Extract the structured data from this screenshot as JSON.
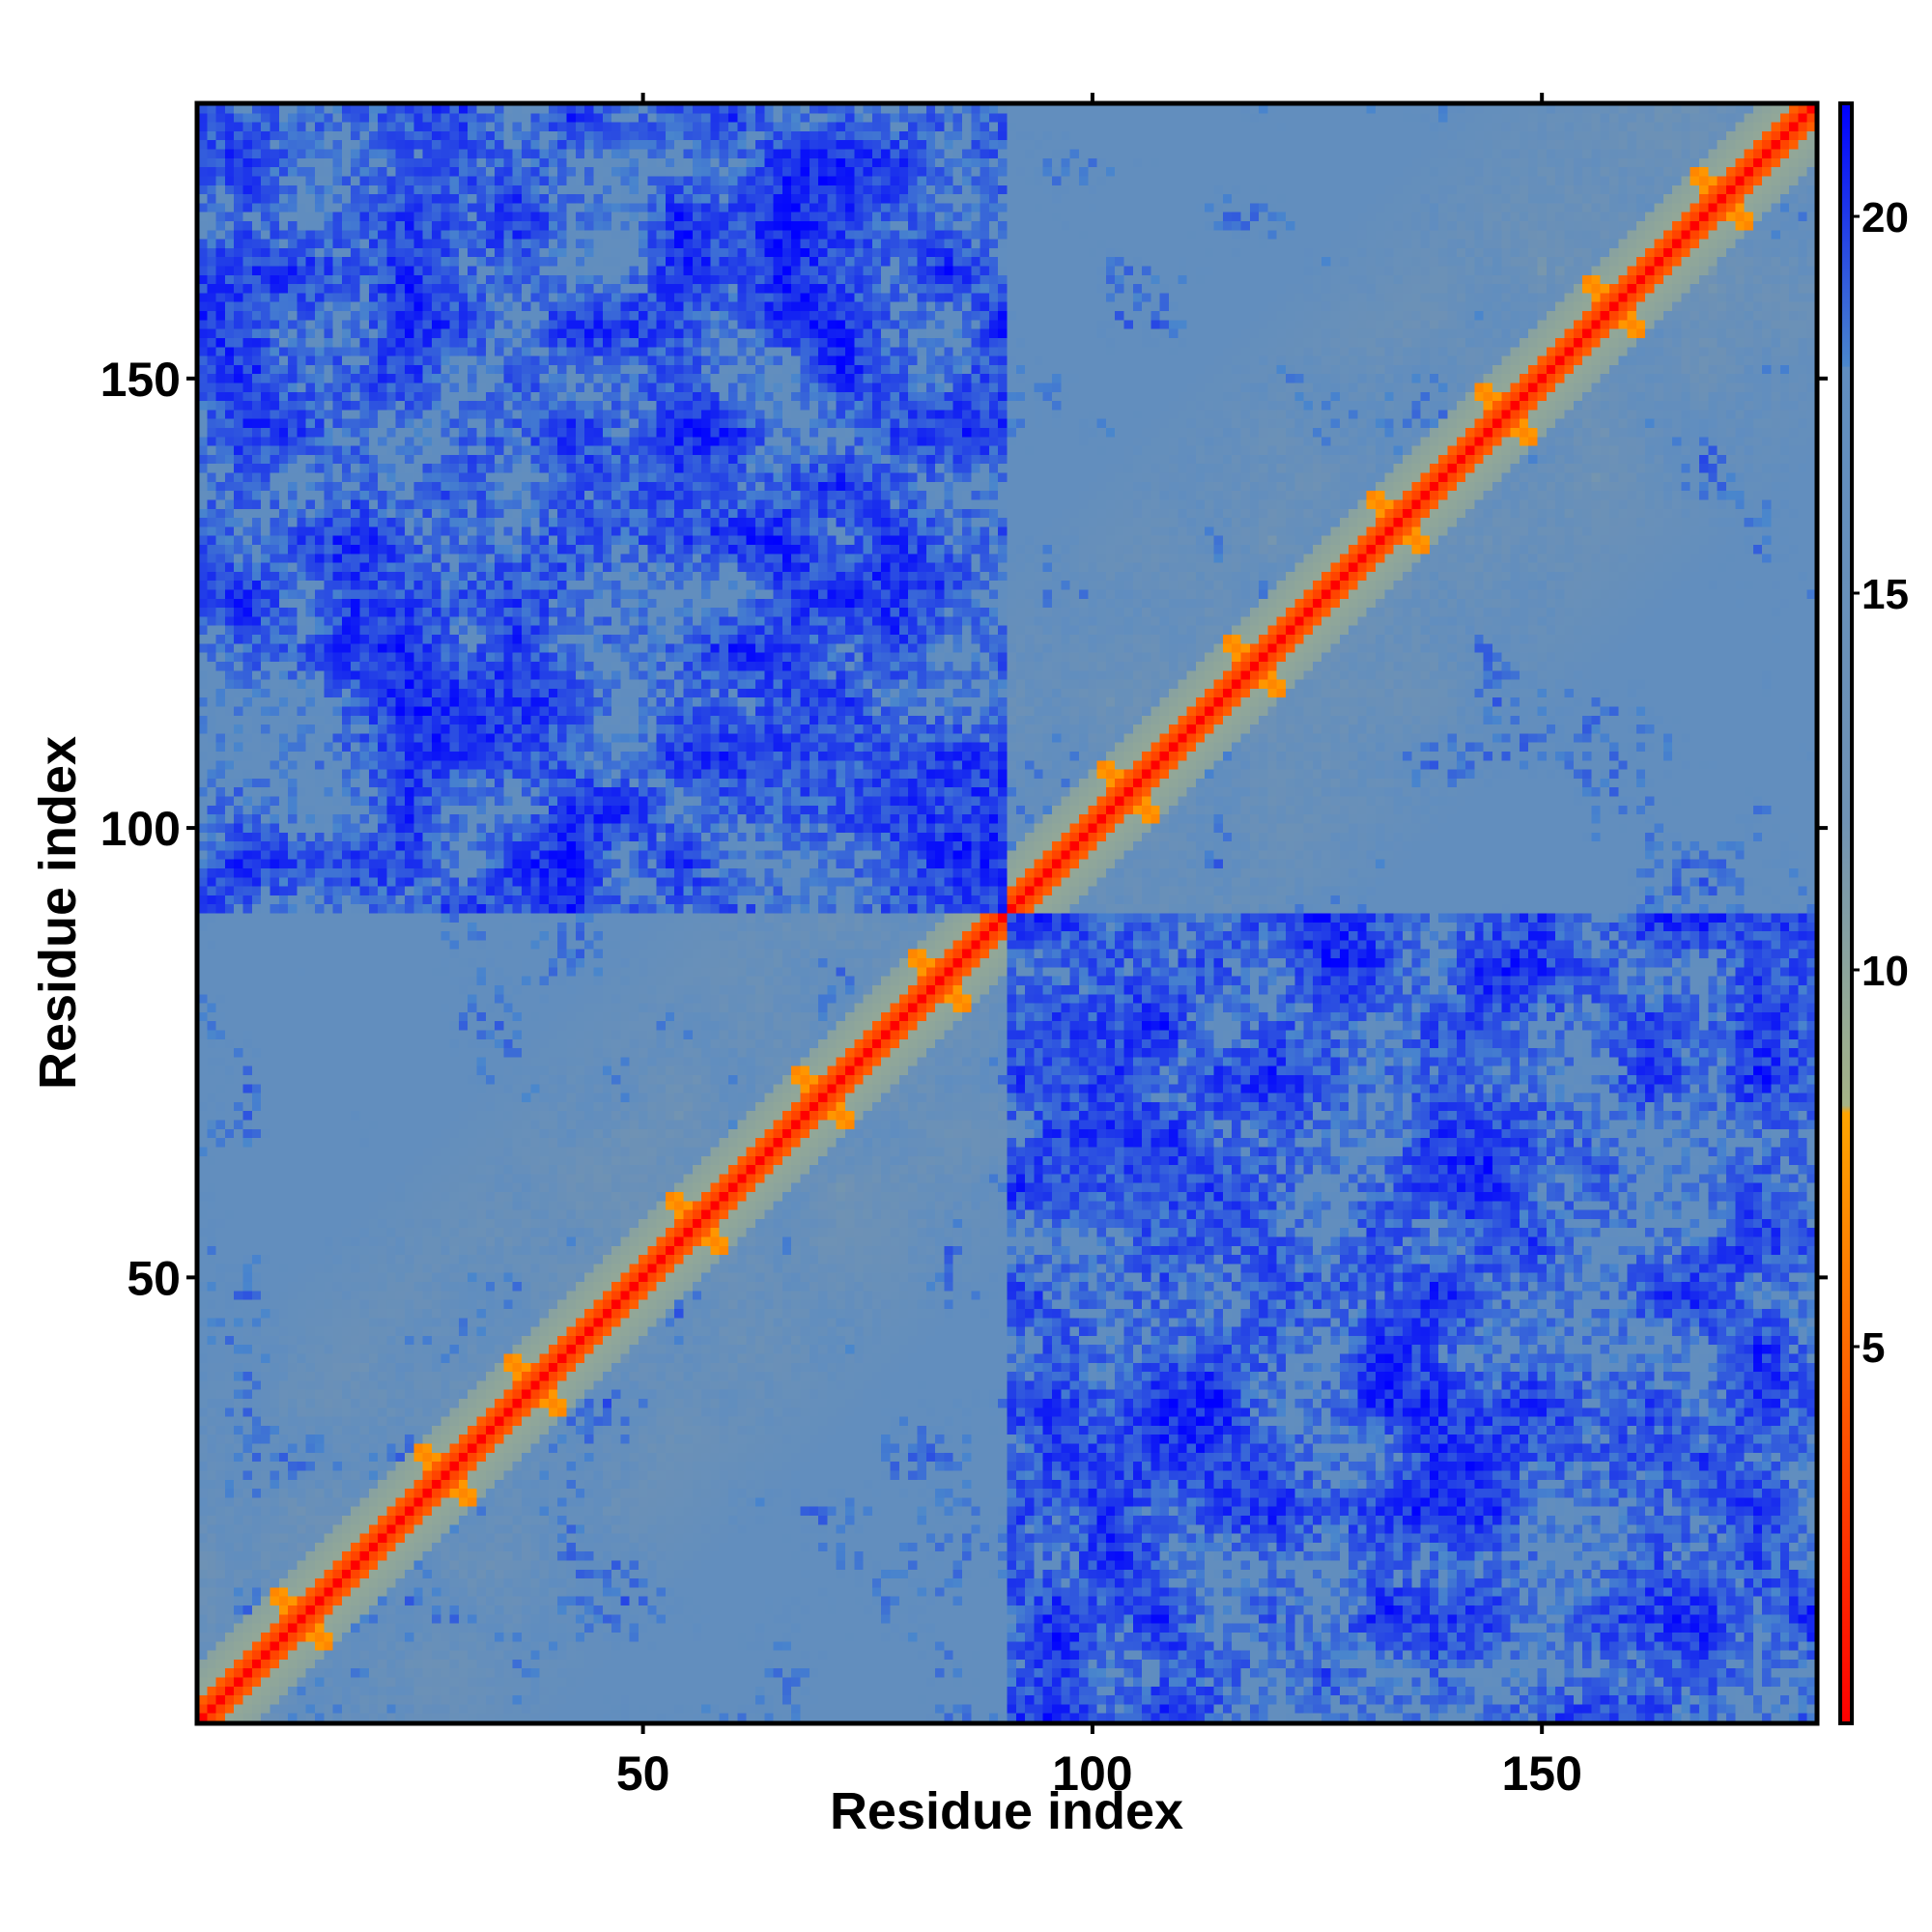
{
  "chart_data": {
    "type": "heatmap",
    "title": "",
    "xlabel": "Residue index",
    "ylabel": "Residue index",
    "n_residues": 180,
    "xlim": [
      1,
      180
    ],
    "ylim": [
      1,
      180
    ],
    "x_ticks": [
      50,
      100,
      150
    ],
    "y_ticks": [
      50,
      100,
      150
    ],
    "colorbar": {
      "range": [
        0,
        21.5
      ],
      "ticks": [
        5,
        10,
        15,
        20
      ],
      "stops": [
        {
          "value": 0,
          "color": "#ff0000"
        },
        {
          "value": 5,
          "color": "#ff6a00"
        },
        {
          "value": 8.1,
          "color": "#ffa500"
        },
        {
          "value": 8.2,
          "color": "#a6b487"
        },
        {
          "value": 12,
          "color": "#6f92b4"
        },
        {
          "value": 18,
          "color": "#5f8dc0"
        },
        {
          "value": 18.01,
          "color": "#4a87cc"
        },
        {
          "value": 21.5,
          "color": "#0000ff"
        }
      ]
    },
    "cutoff": 18,
    "description_values": {
      "diagonal": 0,
      "helix_contact_min": 5,
      "domain1_range": [
        1,
        90
      ],
      "domain2_range": [
        91,
        180
      ]
    },
    "domains": [
      {
        "start": 1,
        "end": 90
      },
      {
        "start": 91,
        "end": 180
      }
    ],
    "helices": [
      {
        "center": 12,
        "half_length": 12
      },
      {
        "center": 28,
        "half_length": 12
      },
      {
        "center": 38,
        "half_length": 10
      },
      {
        "center": 56,
        "half_length": 13
      },
      {
        "center": 70,
        "half_length": 12
      },
      {
        "center": 83,
        "half_length": 5
      },
      {
        "center": 104,
        "half_length": 10
      },
      {
        "center": 118,
        "half_length": 10
      },
      {
        "center": 134,
        "half_length": 11
      },
      {
        "center": 146,
        "half_length": 10
      },
      {
        "center": 158,
        "half_length": 11
      },
      {
        "center": 170,
        "half_length": 8
      }
    ]
  }
}
